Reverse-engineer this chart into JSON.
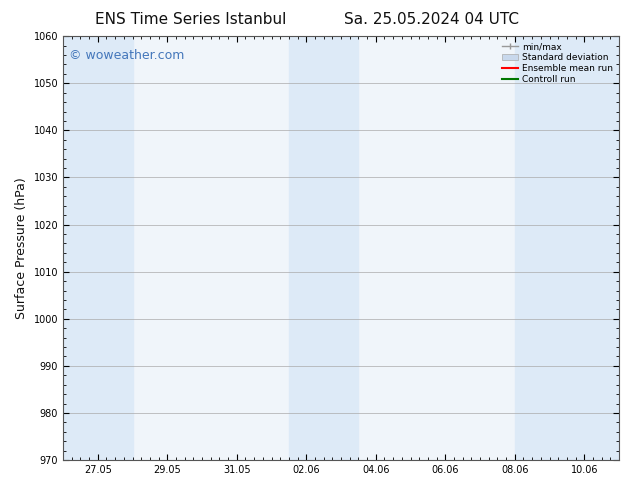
{
  "title": "ENS Time Series Istanbul",
  "title2": "Sa. 25.05.2024 04 UTC",
  "ylabel": "Surface Pressure (hPa)",
  "ylim": [
    970,
    1060
  ],
  "yticks": [
    970,
    980,
    990,
    1000,
    1010,
    1020,
    1030,
    1040,
    1050,
    1060
  ],
  "xlabel_ticks": [
    "27.05",
    "29.05",
    "31.05",
    "02.06",
    "04.06",
    "06.06",
    "08.06",
    "10.06"
  ],
  "x_tick_positions": [
    1.0,
    3.0,
    5.0,
    7.0,
    9.0,
    11.0,
    13.0,
    15.0
  ],
  "xlim": [
    0.0,
    16.0
  ],
  "watermark": "© woweather.com",
  "watermark_color": "#4477bb",
  "shaded_bands": [
    {
      "x_start": 0.0,
      "x_end": 0.5,
      "color": "#ddeaf7"
    },
    {
      "x_start": 0.5,
      "x_end": 2.0,
      "color": "#ddeaf7"
    },
    {
      "x_start": 6.5,
      "x_end": 7.5,
      "color": "#ddeaf7"
    },
    {
      "x_start": 7.5,
      "x_end": 8.5,
      "color": "#ddeaf7"
    },
    {
      "x_start": 13.0,
      "x_end": 14.0,
      "color": "#ddeaf7"
    },
    {
      "x_start": 14.0,
      "x_end": 16.0,
      "color": "#ddeaf7"
    }
  ],
  "legend_labels": [
    "min/max",
    "Standard deviation",
    "Ensemble mean run",
    "Controll run"
  ],
  "minmax_color": "#999999",
  "std_color": "#c8d8ec",
  "ensemble_color": "#ff0000",
  "control_color": "#007700",
  "background_color": "#ffffff",
  "plot_bg_color": "#f0f5fa",
  "grid_color": "#aaaaaa",
  "spine_color": "#555555",
  "font_color": "#111111",
  "title_fontsize": 11,
  "tick_fontsize": 7,
  "ylabel_fontsize": 9,
  "watermark_fontsize": 9
}
